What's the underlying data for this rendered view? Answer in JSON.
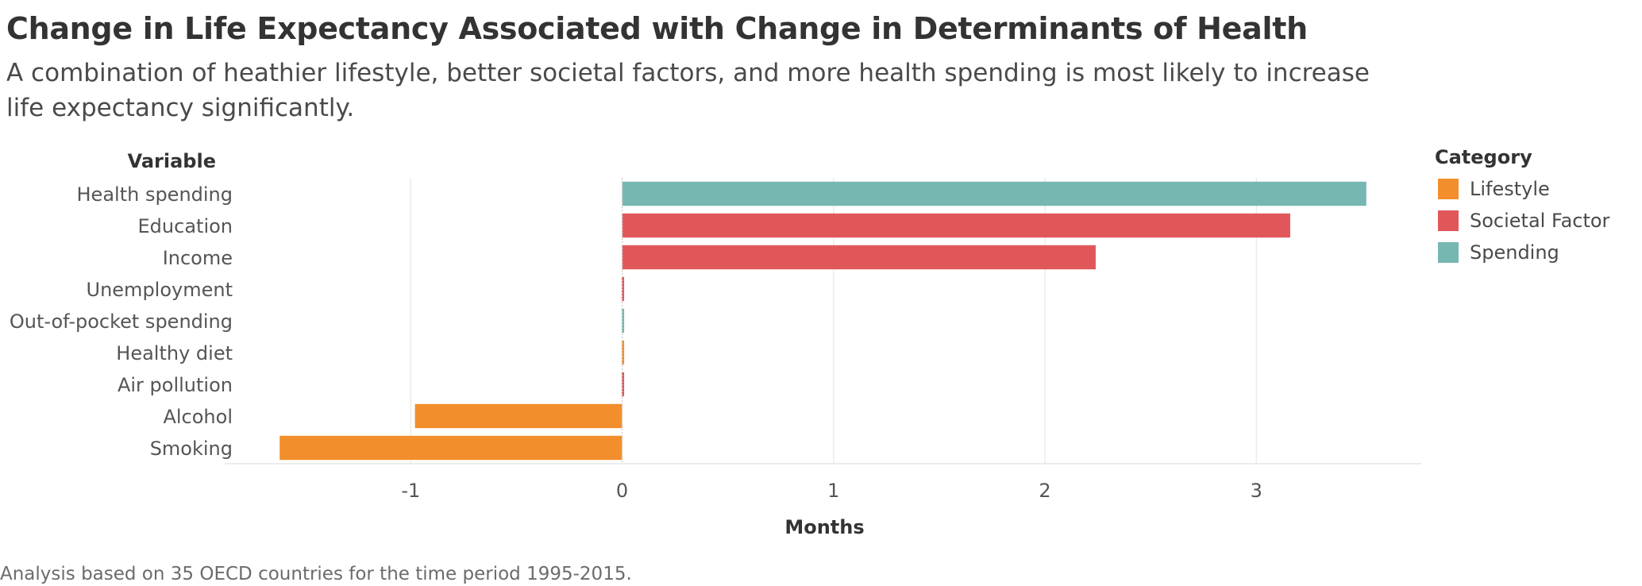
{
  "header": {
    "title": "Change in Life Expectancy Associated with Change in Determinants of Health",
    "subtitle": "A combination of heathier lifestyle, better societal factors, and more health spending is most likely to increase life expectancy significantly."
  },
  "footnote": "Analysis based on 35 OECD countries for the time period 1995-2015.",
  "colors": {
    "Lifestyle": "#f28e2b",
    "Societal Factor": "#e15759",
    "Spending": "#76b7b2"
  },
  "legend": {
    "title": "Category",
    "items": [
      {
        "label": "Lifestyle",
        "color": "#f28e2b"
      },
      {
        "label": "Societal Factor",
        "color": "#e15759"
      },
      {
        "label": "Spending",
        "color": "#76b7b2"
      }
    ]
  },
  "chart_data": {
    "type": "bar",
    "orientation": "horizontal",
    "ylabel": "Variable",
    "xlabel": "Months",
    "xlim": [
      -1.88,
      3.78
    ],
    "xticks": [
      -1,
      0,
      1,
      2,
      3
    ],
    "grid": "vertical",
    "legend_position": "right",
    "categories": [
      "Health spending",
      "Education",
      "Income",
      "Unemployment",
      "Out-of-pocket spending",
      "Healthy diet",
      "Air pollution",
      "Alcohol",
      "Smoking"
    ],
    "values": [
      3.52,
      3.16,
      2.24,
      0.01,
      0.01,
      0.01,
      0.01,
      -0.98,
      -1.62
    ],
    "category_group": [
      "Spending",
      "Societal Factor",
      "Societal Factor",
      "Societal Factor",
      "Spending",
      "Lifestyle",
      "Societal Factor",
      "Lifestyle",
      "Lifestyle"
    ]
  }
}
